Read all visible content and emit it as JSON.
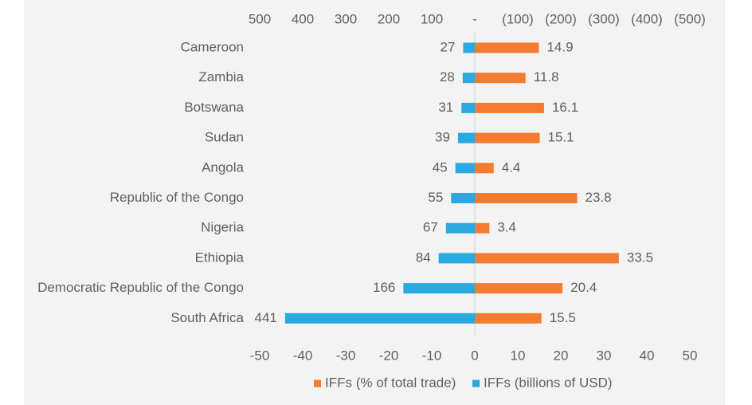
{
  "chart_data": {
    "type": "bar",
    "orientation": "horizontal",
    "categories": [
      "Cameroon",
      "Zambia",
      "Botswana",
      "Sudan",
      "Angola",
      "Republic of the Congo",
      "Nigeria",
      "Ethiopia",
      "Democratic Republic of the Congo",
      "South Africa"
    ],
    "series": [
      {
        "name": "IFFs (% of total trade)",
        "color": "#f47c31",
        "values": [
          14.9,
          11.8,
          16.1,
          15.1,
          4.4,
          23.8,
          3.4,
          33.5,
          20.4,
          15.5
        ],
        "labels": [
          "14.9",
          "11.8",
          "16.1",
          "15.1",
          "4.4",
          "23.8",
          "3.4",
          "33.5",
          "20.4",
          "15.5"
        ]
      },
      {
        "name": "IFFs (billions of USD)",
        "color": "#29a9df",
        "values": [
          27,
          28,
          31,
          39,
          45,
          55,
          67,
          84,
          166,
          441
        ],
        "labels": [
          "27",
          "28",
          "31",
          "39",
          "45",
          "55",
          "67",
          "84",
          "166",
          "441"
        ]
      }
    ],
    "top_axis": {
      "range": [
        500,
        -500
      ],
      "ticks": [
        500,
        400,
        300,
        200,
        100,
        0,
        -100,
        -200,
        -300,
        -400,
        -500
      ],
      "tick_labels": [
        "500",
        "400",
        "300",
        "200",
        "100",
        "-",
        "(100)",
        "(200)",
        "(300)",
        "(400)",
        "(500)"
      ]
    },
    "bottom_axis": {
      "range": [
        -50,
        50
      ],
      "ticks": [
        -50,
        -40,
        -30,
        -20,
        -10,
        0,
        10,
        20,
        30,
        40,
        50
      ],
      "tick_labels": [
        "-50",
        "-40",
        "-30",
        "-20",
        "-10",
        "0",
        "10",
        "20",
        "30",
        "40",
        "50"
      ]
    },
    "legend_position": "bottom-center",
    "grid": false
  }
}
